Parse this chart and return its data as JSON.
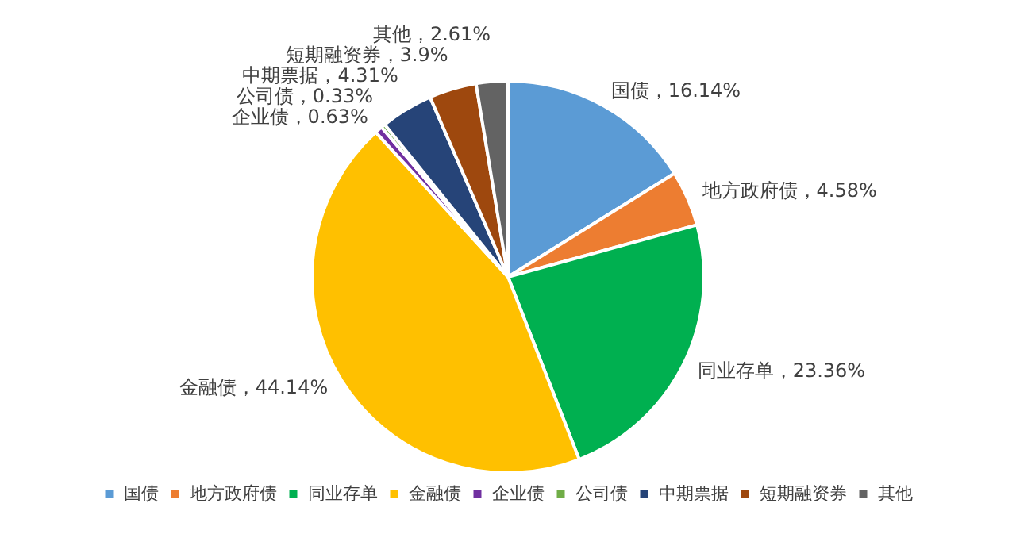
{
  "chart_data": {
    "type": "pie",
    "categories": [
      "国债",
      "地方政府债",
      "同业存单",
      "金融债",
      "企业债",
      "公司债",
      "中期票据",
      "短期融资券",
      "其他"
    ],
    "values": [
      16.14,
      4.58,
      23.36,
      44.14,
      0.63,
      0.33,
      4.31,
      3.9,
      2.61
    ],
    "colors": [
      "#5b9bd5",
      "#ed7d31",
      "#00b050",
      "#ffc000",
      "#7030a0",
      "#70ad47",
      "#264478",
      "#9e480e",
      "#636363"
    ],
    "value_labels": [
      "国债，16.14%",
      "地方政府债，4.58%",
      "同业存单，23.36%",
      "金融债，44.14%",
      "企业债，0.63%",
      "公司债，0.33%",
      "中期票据，4.31%",
      "短期融资券，3.9%",
      "其他，2.61%"
    ],
    "legend": "bottom"
  }
}
